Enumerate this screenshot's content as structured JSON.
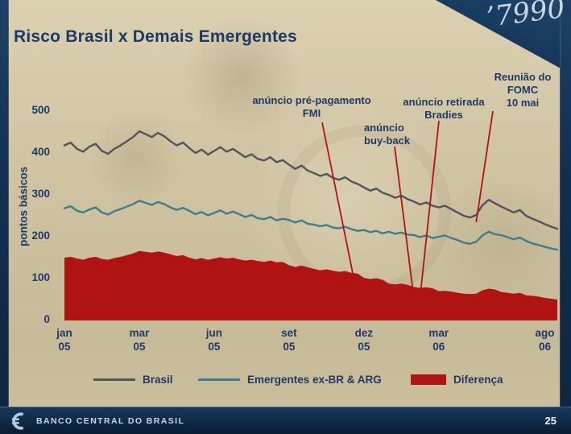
{
  "slide": {
    "title": "Risco Brasil x Demais Emergentes",
    "footer_brand": "BANCO CENTRAL DO BRASIL",
    "page_number": "25",
    "background_text": "’7990"
  },
  "chart_data": {
    "type": "line",
    "title": "",
    "xlabel": "",
    "ylabel": "pontos básicos",
    "ylim": [
      0,
      500
    ],
    "grid": false,
    "legend_position": "bottom",
    "y_ticks": [
      0,
      100,
      200,
      300,
      400,
      500
    ],
    "x_ticks": [
      {
        "label": "jan 05",
        "index": 0
      },
      {
        "label": "mar 05",
        "index": 12
      },
      {
        "label": "jun 05",
        "index": 24
      },
      {
        "label": "set 05",
        "index": 36
      },
      {
        "label": "dez 05",
        "index": 48
      },
      {
        "label": "mar 06",
        "index": 60
      },
      {
        "label": "ago 06",
        "index": 77
      }
    ],
    "series": [
      {
        "key": "brasil",
        "name": "Brasil",
        "style": "line",
        "color": "#53535b",
        "values": [
          418,
          425,
          410,
          403,
          415,
          422,
          405,
          398,
          410,
          418,
          428,
          438,
          452,
          445,
          438,
          448,
          440,
          428,
          418,
          425,
          412,
          400,
          408,
          396,
          405,
          414,
          403,
          410,
          400,
          390,
          397,
          386,
          382,
          390,
          378,
          383,
          372,
          362,
          370,
          358,
          352,
          345,
          350,
          341,
          336,
          342,
          332,
          326,
          318,
          310,
          315,
          305,
          300,
          293,
          298,
          290,
          284,
          277,
          282,
          274,
          270,
          274,
          266,
          258,
          250,
          246,
          252,
          275,
          288,
          280,
          272,
          265,
          258,
          264,
          250,
          243,
          237,
          230,
          224,
          219
        ]
      },
      {
        "key": "emergentes",
        "name": "Emergentes ex-BR & ARG",
        "style": "line",
        "color": "#3f7d8c",
        "values": [
          268,
          273,
          262,
          258,
          265,
          270,
          258,
          253,
          261,
          266,
          272,
          278,
          286,
          281,
          276,
          283,
          278,
          270,
          264,
          269,
          262,
          254,
          259,
          251,
          257,
          263,
          255,
          260,
          254,
          247,
          252,
          244,
          242,
          247,
          239,
          243,
          240,
          234,
          239,
          231,
          229,
          225,
          228,
          222,
          220,
          224,
          218,
          214,
          216,
          211,
          214,
          208,
          212,
          207,
          210,
          205,
          204,
          199,
          203,
          197,
          200,
          203,
          197,
          192,
          186,
          183,
          188,
          203,
          212,
          206,
          204,
          199,
          194,
          198,
          190,
          184,
          180,
          176,
          172,
          169
        ]
      },
      {
        "key": "diferenca",
        "name": "Diferença",
        "style": "area",
        "color": "#b01412",
        "values": [
          150,
          152,
          148,
          145,
          150,
          152,
          147,
          145,
          149,
          152,
          156,
          160,
          166,
          164,
          162,
          165,
          162,
          158,
          154,
          156,
          150,
          146,
          149,
          145,
          148,
          151,
          148,
          150,
          146,
          143,
          145,
          142,
          140,
          143,
          139,
          140,
          132,
          128,
          131,
          127,
          123,
          120,
          122,
          119,
          116,
          118,
          114,
          112,
          102,
          99,
          101,
          97,
          88,
          86,
          88,
          85,
          80,
          78,
          79,
          77,
          70,
          71,
          69,
          66,
          64,
          63,
          64,
          72,
          76,
          74,
          68,
          66,
          64,
          66,
          60,
          59,
          57,
          54,
          52,
          50
        ]
      }
    ],
    "annotations": [
      {
        "id": "fmi",
        "label": "anúncio pré-pagamento\nFMI",
        "x_index": 47,
        "target_value": 55
      },
      {
        "id": "buyback",
        "label": "anúncio\nbuy-back",
        "x_index": 56,
        "target_value": 55
      },
      {
        "id": "bradies",
        "label": "anúncio retirada\nBradies",
        "x_index": 57,
        "target_value": 55
      },
      {
        "id": "fomc",
        "label": "Reunião do\nFOMC\n10 mai",
        "x_index": 66,
        "target_value": 235
      }
    ],
    "annotation_line_color": "#b01412"
  }
}
